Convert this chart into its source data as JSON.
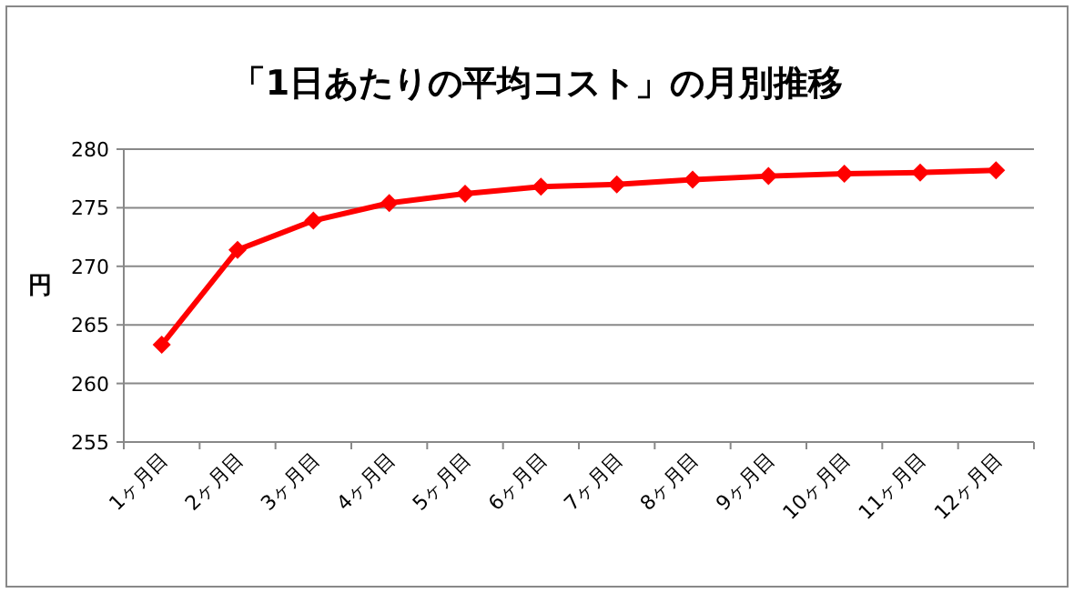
{
  "chart_data": {
    "type": "line",
    "title": "「1日あたりの平均コスト」の月別推移",
    "ylabel": "円",
    "categories": [
      "1ヶ月目",
      "2ヶ月目",
      "3ヶ月目",
      "4ヶ月目",
      "5ヶ月目",
      "6ヶ月目",
      "7ヶ月目",
      "8ヶ月目",
      "9ヶ月目",
      "10ヶ月目",
      "11ヶ月目",
      "12ヶ月目"
    ],
    "series": [
      {
        "color": "#ff0000",
        "values": [
          263.3,
          271.4,
          273.9,
          275.4,
          276.2,
          276.8,
          277.0,
          277.4,
          277.7,
          277.9,
          278.0,
          278.2
        ]
      }
    ],
    "ylim": [
      255,
      280
    ],
    "yticks": [
      255,
      260,
      265,
      270,
      275,
      280
    ],
    "grid": "y",
    "marker": "diamond",
    "line_style": "solid"
  }
}
